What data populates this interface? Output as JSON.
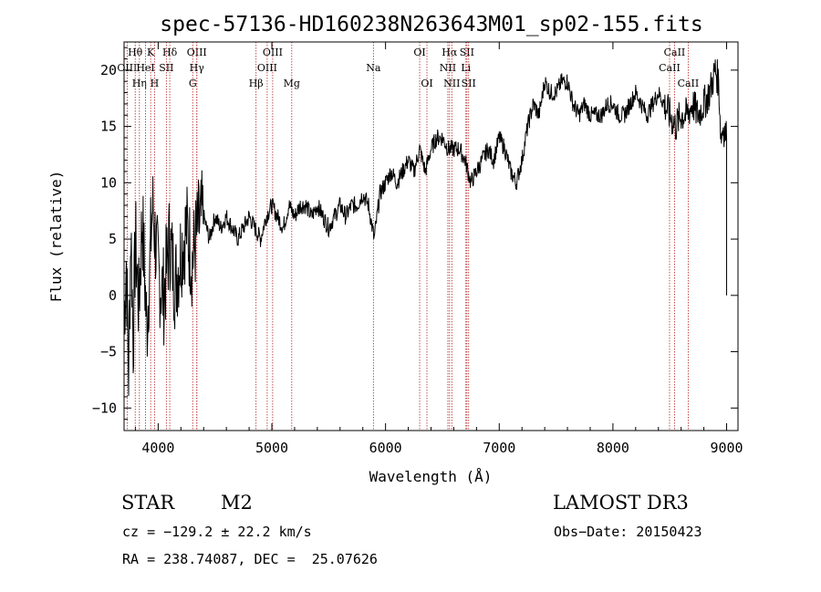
{
  "chart_data": {
    "type": "line",
    "title": "spec-57136-HD160238N263643M01_sp02-155.fits",
    "xlabel": "Wavelength (Å)",
    "ylabel": "Flux (relative)",
    "xlim": [
      3700,
      9100
    ],
    "ylim": [
      -12,
      22.5
    ],
    "x_ticks": [
      4000,
      5000,
      6000,
      7000,
      8000,
      9000
    ],
    "y_ticks": [
      -10,
      -5,
      0,
      5,
      10,
      15,
      20
    ],
    "grid": false,
    "line_color": "#000000",
    "marker_color": "#b22222",
    "series": [
      {
        "x": [
          3700,
          3720,
          3740,
          3760,
          3780,
          3800,
          3830,
          3860,
          3900,
          3950,
          4000,
          4050,
          4100,
          4150,
          4200,
          4250,
          4300,
          4350,
          4400,
          4450,
          4500,
          4550,
          4600,
          4650,
          4700,
          4750,
          4800,
          4850,
          4900,
          4950,
          5000,
          5050,
          5100,
          5150,
          5200,
          5250,
          5300,
          5350,
          5400,
          5450,
          5500,
          5550,
          5600,
          5650,
          5700,
          5750,
          5800,
          5850,
          5900,
          5950,
          6000,
          6050,
          6100,
          6150,
          6200,
          6250,
          6300,
          6350,
          6400,
          6450,
          6500,
          6550,
          6600,
          6650,
          6700,
          6750,
          6800,
          6850,
          6900,
          6950,
          7000,
          7050,
          7100,
          7150,
          7200,
          7250,
          7300,
          7350,
          7400,
          7450,
          7500,
          7550,
          7600,
          7650,
          7700,
          7750,
          7800,
          7850,
          7900,
          7950,
          8000,
          8050,
          8100,
          8150,
          8200,
          8250,
          8300,
          8350,
          8400,
          8450,
          8500,
          8550,
          8600,
          8650,
          8700,
          8750,
          8800,
          8850,
          8900,
          8930,
          8950,
          8970,
          9000
        ],
        "y": [
          -2,
          3,
          -7,
          6,
          -4,
          5,
          -1,
          7,
          -3,
          8,
          2,
          0,
          5,
          1,
          4,
          6,
          3,
          6,
          7,
          5,
          7,
          6,
          7,
          6,
          5,
          6,
          7,
          6,
          5,
          7,
          8,
          7,
          6,
          8,
          7,
          8,
          8,
          7,
          8,
          7,
          6,
          7,
          8,
          7,
          8,
          8,
          9,
          8,
          5,
          9,
          10,
          11,
          10,
          11,
          12,
          11,
          13,
          11,
          13,
          14,
          14,
          13,
          13,
          13,
          12,
          10,
          11,
          12,
          13,
          12,
          14,
          13,
          11,
          10,
          12,
          15,
          17,
          16,
          19,
          18,
          18,
          19,
          19,
          17,
          16,
          17,
          16,
          16,
          16,
          17,
          17,
          16,
          16,
          17,
          18,
          17,
          16,
          17,
          18,
          17,
          16,
          15,
          16,
          16,
          17,
          16,
          17,
          18,
          20,
          19,
          14,
          15,
          14
        ]
      }
    ],
    "lines": [
      {
        "label": "OIII",
        "x": 3727,
        "row": 1
      },
      {
        "label": "Hθ",
        "x": 3798,
        "row": 0
      },
      {
        "label": "Hη",
        "x": 3835,
        "row": 2
      },
      {
        "label": "HeI",
        "x": 3889,
        "row": 1
      },
      {
        "label": "K",
        "x": 3934,
        "row": 0
      },
      {
        "label": "H",
        "x": 3968,
        "row": 2
      },
      {
        "label": "SII",
        "x": 4072,
        "row": 1
      },
      {
        "label": "Hδ",
        "x": 4102,
        "row": 0
      },
      {
        "label": "G",
        "x": 4304,
        "row": 2
      },
      {
        "label": "OIII",
        "x": 4340,
        "row": 0
      },
      {
        "label": "Hγ",
        "x": 4340,
        "row": 1
      },
      {
        "label": "Hβ",
        "x": 4861,
        "row": 2
      },
      {
        "label": "OIII",
        "x": 5007,
        "row": 0
      },
      {
        "label": "OIII",
        "x": 4959,
        "row": 1
      },
      {
        "label": "Mg",
        "x": 5175,
        "row": 2
      },
      {
        "label": "Na",
        "x": 5893,
        "row": 1
      },
      {
        "label": "OI",
        "x": 6300,
        "row": 0
      },
      {
        "label": "OI",
        "x": 6364,
        "row": 2
      },
      {
        "label": "Hα",
        "x": 6563,
        "row": 0
      },
      {
        "label": "NII",
        "x": 6548,
        "row": 1
      },
      {
        "label": "NII",
        "x": 6583,
        "row": 2
      },
      {
        "label": "SII",
        "x": 6716,
        "row": 0
      },
      {
        "label": "Li",
        "x": 6707,
        "row": 1
      },
      {
        "label": "SII",
        "x": 6731,
        "row": 2
      },
      {
        "label": "CaII",
        "x": 8542,
        "row": 0
      },
      {
        "label": "CaII",
        "x": 8498,
        "row": 1
      },
      {
        "label": "CaII",
        "x": 8662,
        "row": 2
      }
    ]
  },
  "info": {
    "object_type": "STAR",
    "subclass": "M2",
    "survey": "LAMOST DR3",
    "cz": "cz = −129.2 ± 22.2 km/s",
    "coords": "RA = 238.74087, DEC =  25.07626",
    "obs_date": "Obs−Date: 20150423"
  }
}
